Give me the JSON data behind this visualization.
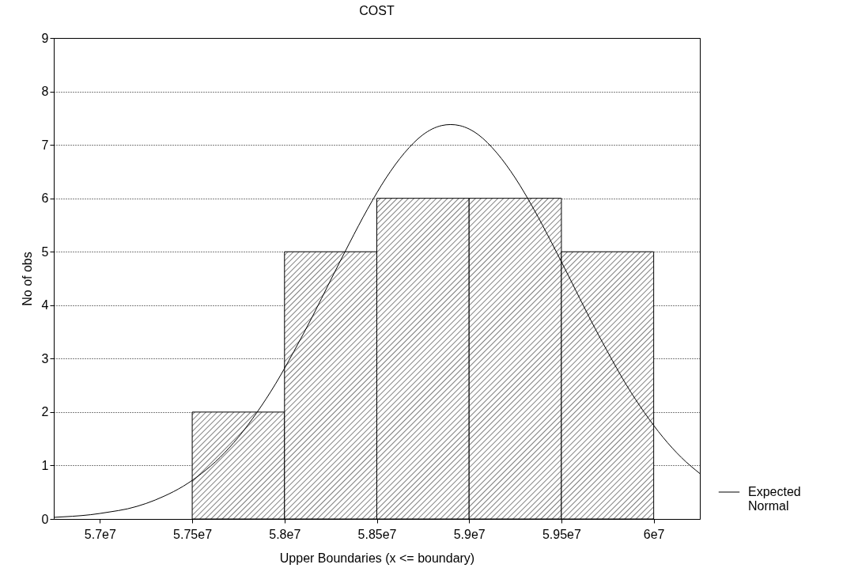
{
  "chart_data": {
    "type": "histogram",
    "title": "COST",
    "xlabel": "Upper Boundaries (x <= boundary)",
    "ylabel": "No of obs",
    "bins": [
      57500000,
      58000000,
      58500000,
      59000000,
      59500000,
      60000000
    ],
    "values": [
      2,
      5,
      6,
      6,
      5
    ],
    "color": "#000000",
    "series": [
      {
        "type": "line",
        "name": "Expected Normal",
        "color": "#000000",
        "x": [
          56750000,
          56850000,
          56950000,
          57050000,
          57150000,
          57250000,
          57350000,
          57450000,
          57550000,
          57650000,
          57750000,
          57850000,
          57950000,
          58050000,
          58150000,
          58250000,
          58350000,
          58450000,
          58550000,
          58650000,
          58750000,
          58850000,
          58900000,
          58950000,
          59050000,
          59150000,
          59250000,
          59350000,
          59450000,
          59550000,
          59650000,
          59750000,
          59850000,
          59950000,
          60050000,
          60150000,
          60250000
        ],
        "values": [
          0.03,
          0.05,
          0.08,
          0.13,
          0.19,
          0.29,
          0.43,
          0.61,
          0.85,
          1.15,
          1.53,
          1.99,
          2.52,
          3.13,
          3.78,
          4.47,
          5.15,
          5.8,
          6.38,
          6.85,
          7.19,
          7.36,
          7.38,
          7.36,
          7.19,
          6.85,
          6.38,
          5.8,
          5.15,
          4.47,
          3.78,
          3.13,
          2.52,
          1.99,
          1.53,
          1.15,
          0.85
        ]
      }
    ],
    "xlim": [
      56750000,
      60250000
    ],
    "xticks": [
      {
        "value": 57000000,
        "label": "5.7e7"
      },
      {
        "value": 57500000,
        "label": "5.75e7"
      },
      {
        "value": 58000000,
        "label": "5.8e7"
      },
      {
        "value": 58500000,
        "label": "5.85e7"
      },
      {
        "value": 59000000,
        "label": "5.9e7"
      },
      {
        "value": 59500000,
        "label": "5.95e7"
      },
      {
        "value": 60000000,
        "label": "6e7"
      }
    ],
    "ylim": [
      0,
      9
    ],
    "yticks": [
      0,
      1,
      2,
      3,
      4,
      5,
      6,
      7,
      8,
      9
    ],
    "grid": "y",
    "legend": "right",
    "line_style": "solid",
    "marker": "none"
  }
}
